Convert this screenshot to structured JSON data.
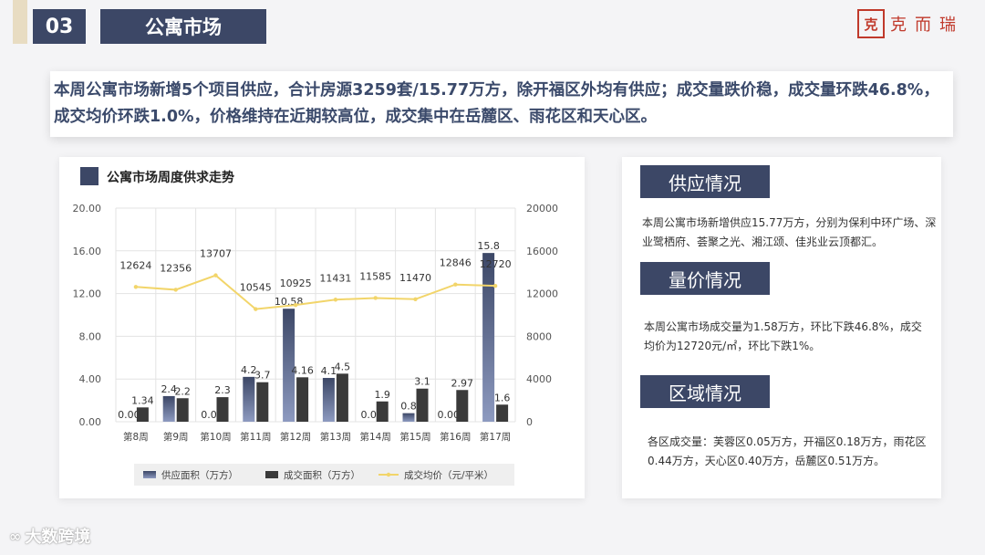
{
  "header": {
    "section_number": "03",
    "section_title": "公寓市场",
    "logo_seal": "克",
    "logo_text": "克而瑞"
  },
  "summary": "本周公寓市场新增5个项目供应，合计房源3259套/15.77万方，除开福区外均有供应；成交量跌价稳，成交量环跌46.8%，成交均价环跌1.0%，价格维持在近期较高位，成交集中在岳麓区、雨花区和天心区。",
  "chart_title": "公寓市场周度供求走势",
  "side": {
    "supply_title": "供应情况",
    "supply_text": "本周公寓市场新增供应15.77万方，分别为保利中环广场、深业鹭栖府、荟聚之光、湘江颂、佳兆业云顶都汇。",
    "price_title": "量价情况",
    "price_text": "本周公寓市场成交量为1.58万方，环比下跌46.8%，成交均价为12720元/㎡，环比下跌1%。",
    "region_title": "区域情况",
    "region_text": "各区成交量：芙蓉区0.05万方，开福区0.18万方，雨花区0.44万方，天心区0.40万方，岳麓区0.51万方。"
  },
  "watermark": "大数跨境",
  "chart_data": {
    "type": "bar",
    "categories": [
      "第8周",
      "第9周",
      "第10周",
      "第11周",
      "第12周",
      "第13周",
      "第14周",
      "第15周",
      "第16周",
      "第17周"
    ],
    "series": [
      {
        "name": "供应面积（万方）",
        "type": "bar",
        "axis": "left",
        "color": "#4a5a80",
        "values": [
          0.0,
          2.4,
          0.0,
          4.2,
          10.58,
          4.1,
          0.0,
          0.8,
          0.0,
          15.8
        ],
        "labels": [
          "0.00",
          "2.4",
          "0.0",
          "4.2",
          "10.58",
          "4.1",
          "0.0",
          "0.8",
          "0.00",
          "15.8"
        ]
      },
      {
        "name": "成交面积（万方）",
        "type": "bar",
        "axis": "left",
        "color": "#3a3a3a",
        "values": [
          1.34,
          2.2,
          2.3,
          3.7,
          4.16,
          4.5,
          1.9,
          3.1,
          2.97,
          1.6
        ],
        "labels": [
          "1.34",
          "2.2",
          "2.3",
          "3.7",
          "4.16",
          "4.5",
          "1.9",
          "3.1",
          "2.97",
          "1.6"
        ]
      },
      {
        "name": "成交均价（元/平米）",
        "type": "line",
        "axis": "right",
        "color": "#f2d56a",
        "values": [
          12624,
          12356,
          13707,
          10545,
          10925,
          11431,
          11585,
          11470,
          12846,
          12720
        ],
        "labels": [
          "12624",
          "12356",
          "13707",
          "10545",
          "10925",
          "11431",
          "11585",
          "11470",
          "12846",
          "12720"
        ]
      }
    ],
    "y_left": {
      "min": 0,
      "max": 20,
      "ticks": [
        "0.00",
        "4.00",
        "8.00",
        "12.00",
        "16.00",
        "20.00"
      ]
    },
    "y_right": {
      "min": 0,
      "max": 20000,
      "ticks": [
        "0",
        "4000",
        "8000",
        "12000",
        "16000",
        "20000"
      ]
    },
    "grid": true,
    "legend_position": "bottom"
  }
}
